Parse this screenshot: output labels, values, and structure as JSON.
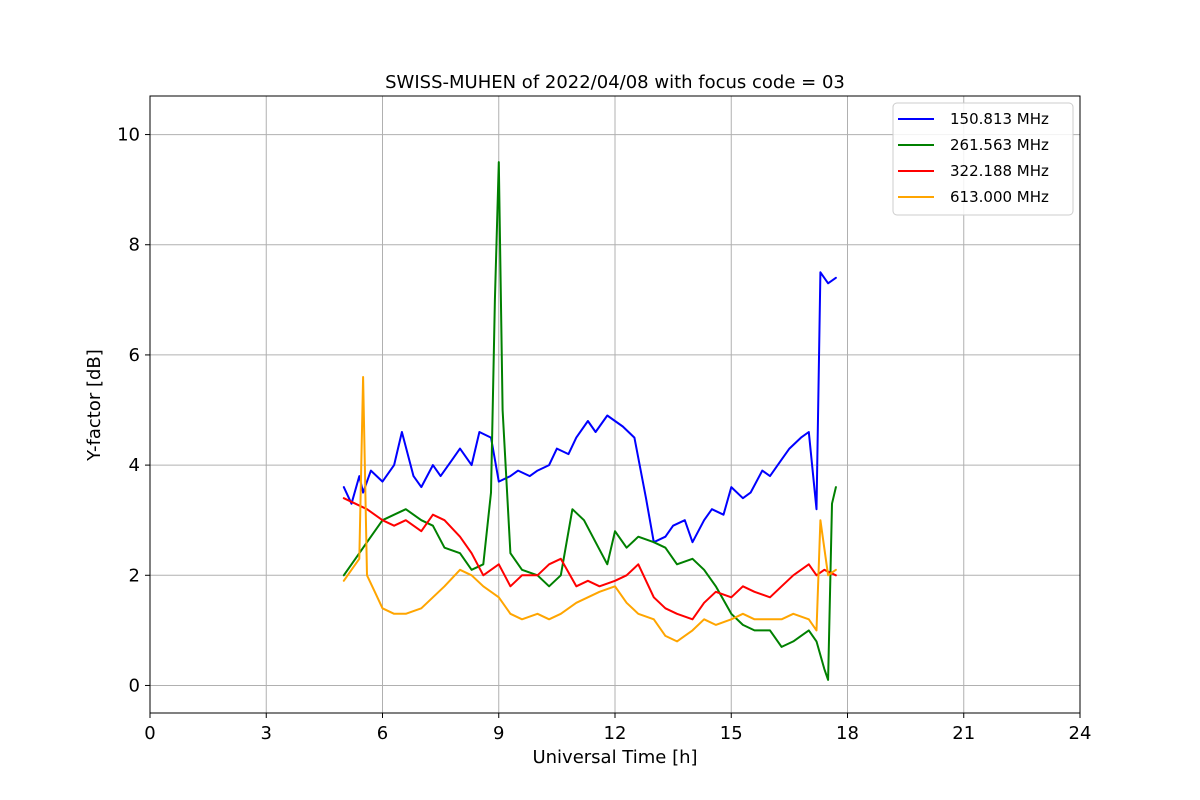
{
  "chart_data": {
    "type": "line",
    "title": "SWISS-MUHEN of 2022/04/08 with focus code = 03",
    "xlabel": "Universal Time [h]",
    "ylabel": "Y-factor [dB]",
    "xlim": [
      0,
      24
    ],
    "ylim": [
      -0.5,
      10.7
    ],
    "xticks": [
      0,
      3,
      6,
      9,
      12,
      15,
      18,
      21,
      24
    ],
    "xtick_labels": [
      "0",
      "3",
      "6",
      "9",
      "12",
      "15",
      "18",
      "21",
      "24"
    ],
    "yticks": [
      0,
      2,
      4,
      6,
      8,
      10
    ],
    "ytick_labels": [
      "0",
      "2",
      "4",
      "6",
      "8",
      "10"
    ],
    "grid": true,
    "legend_position": "top-right",
    "series": [
      {
        "name": "150.813 MHz",
        "color": "#0000ff",
        "x": [
          5.0,
          5.2,
          5.4,
          5.5,
          5.7,
          6.0,
          6.3,
          6.5,
          6.8,
          7.0,
          7.3,
          7.5,
          7.8,
          8.0,
          8.3,
          8.5,
          8.8,
          9.0,
          9.3,
          9.5,
          9.8,
          10.0,
          10.3,
          10.5,
          10.8,
          11.0,
          11.3,
          11.5,
          11.8,
          12.0,
          12.2,
          12.5,
          12.8,
          13.0,
          13.3,
          13.5,
          13.8,
          14.0,
          14.3,
          14.5,
          14.8,
          15.0,
          15.3,
          15.5,
          15.8,
          16.0,
          16.3,
          16.5,
          16.8,
          17.0,
          17.2,
          17.3,
          17.5,
          17.7
        ],
        "y": [
          3.6,
          3.3,
          3.8,
          3.5,
          3.9,
          3.7,
          4.0,
          4.6,
          3.8,
          3.6,
          4.0,
          3.8,
          4.1,
          4.3,
          4.0,
          4.6,
          4.5,
          3.7,
          3.8,
          3.9,
          3.8,
          3.9,
          4.0,
          4.3,
          4.2,
          4.5,
          4.8,
          4.6,
          4.9,
          4.8,
          4.7,
          4.5,
          3.4,
          2.6,
          2.7,
          2.9,
          3.0,
          2.6,
          3.0,
          3.2,
          3.1,
          3.6,
          3.4,
          3.5,
          3.9,
          3.8,
          4.1,
          4.3,
          4.5,
          4.6,
          3.2,
          7.5,
          7.3,
          7.4
        ]
      },
      {
        "name": "261.563 MHz",
        "color": "#008000",
        "x": [
          5.0,
          5.3,
          5.6,
          6.0,
          6.3,
          6.6,
          7.0,
          7.3,
          7.6,
          8.0,
          8.3,
          8.6,
          8.8,
          8.9,
          9.0,
          9.1,
          9.3,
          9.6,
          10.0,
          10.3,
          10.6,
          10.9,
          11.2,
          11.5,
          11.8,
          12.0,
          12.3,
          12.6,
          13.0,
          13.3,
          13.6,
          14.0,
          14.3,
          14.6,
          15.0,
          15.3,
          15.6,
          16.0,
          16.3,
          16.6,
          17.0,
          17.2,
          17.4,
          17.5,
          17.6,
          17.7
        ],
        "y": [
          2.0,
          2.3,
          2.6,
          3.0,
          3.1,
          3.2,
          3.0,
          2.9,
          2.5,
          2.4,
          2.1,
          2.2,
          3.5,
          7.0,
          9.5,
          5.0,
          2.4,
          2.1,
          2.0,
          1.8,
          2.0,
          3.2,
          3.0,
          2.6,
          2.2,
          2.8,
          2.5,
          2.7,
          2.6,
          2.5,
          2.2,
          2.3,
          2.1,
          1.8,
          1.3,
          1.1,
          1.0,
          1.0,
          0.7,
          0.8,
          1.0,
          0.8,
          0.3,
          0.1,
          3.3,
          3.6
        ]
      },
      {
        "name": "322.188 MHz",
        "color": "#ff0000",
        "x": [
          5.0,
          5.3,
          5.6,
          6.0,
          6.3,
          6.6,
          7.0,
          7.3,
          7.6,
          8.0,
          8.3,
          8.6,
          9.0,
          9.3,
          9.6,
          10.0,
          10.3,
          10.6,
          11.0,
          11.3,
          11.6,
          12.0,
          12.3,
          12.6,
          13.0,
          13.3,
          13.6,
          14.0,
          14.3,
          14.6,
          15.0,
          15.3,
          15.6,
          16.0,
          16.3,
          16.6,
          17.0,
          17.2,
          17.4,
          17.7
        ],
        "y": [
          3.4,
          3.3,
          3.2,
          3.0,
          2.9,
          3.0,
          2.8,
          3.1,
          3.0,
          2.7,
          2.4,
          2.0,
          2.2,
          1.8,
          2.0,
          2.0,
          2.2,
          2.3,
          1.8,
          1.9,
          1.8,
          1.9,
          2.0,
          2.2,
          1.6,
          1.4,
          1.3,
          1.2,
          1.5,
          1.7,
          1.6,
          1.8,
          1.7,
          1.6,
          1.8,
          2.0,
          2.2,
          2.0,
          2.1,
          2.0
        ]
      },
      {
        "name": "613.000 MHz",
        "color": "#ffa500",
        "x": [
          5.0,
          5.2,
          5.4,
          5.5,
          5.6,
          5.8,
          6.0,
          6.3,
          6.6,
          7.0,
          7.3,
          7.6,
          8.0,
          8.3,
          8.6,
          9.0,
          9.3,
          9.6,
          10.0,
          10.3,
          10.6,
          11.0,
          11.3,
          11.6,
          12.0,
          12.3,
          12.6,
          13.0,
          13.3,
          13.6,
          14.0,
          14.3,
          14.6,
          15.0,
          15.3,
          15.6,
          16.0,
          16.3,
          16.6,
          17.0,
          17.2,
          17.3,
          17.5,
          17.7
        ],
        "y": [
          1.9,
          2.1,
          2.3,
          5.6,
          2.0,
          1.7,
          1.4,
          1.3,
          1.3,
          1.4,
          1.6,
          1.8,
          2.1,
          2.0,
          1.8,
          1.6,
          1.3,
          1.2,
          1.3,
          1.2,
          1.3,
          1.5,
          1.6,
          1.7,
          1.8,
          1.5,
          1.3,
          1.2,
          0.9,
          0.8,
          1.0,
          1.2,
          1.1,
          1.2,
          1.3,
          1.2,
          1.2,
          1.2,
          1.3,
          1.2,
          1.0,
          3.0,
          2.0,
          2.1
        ]
      }
    ]
  }
}
